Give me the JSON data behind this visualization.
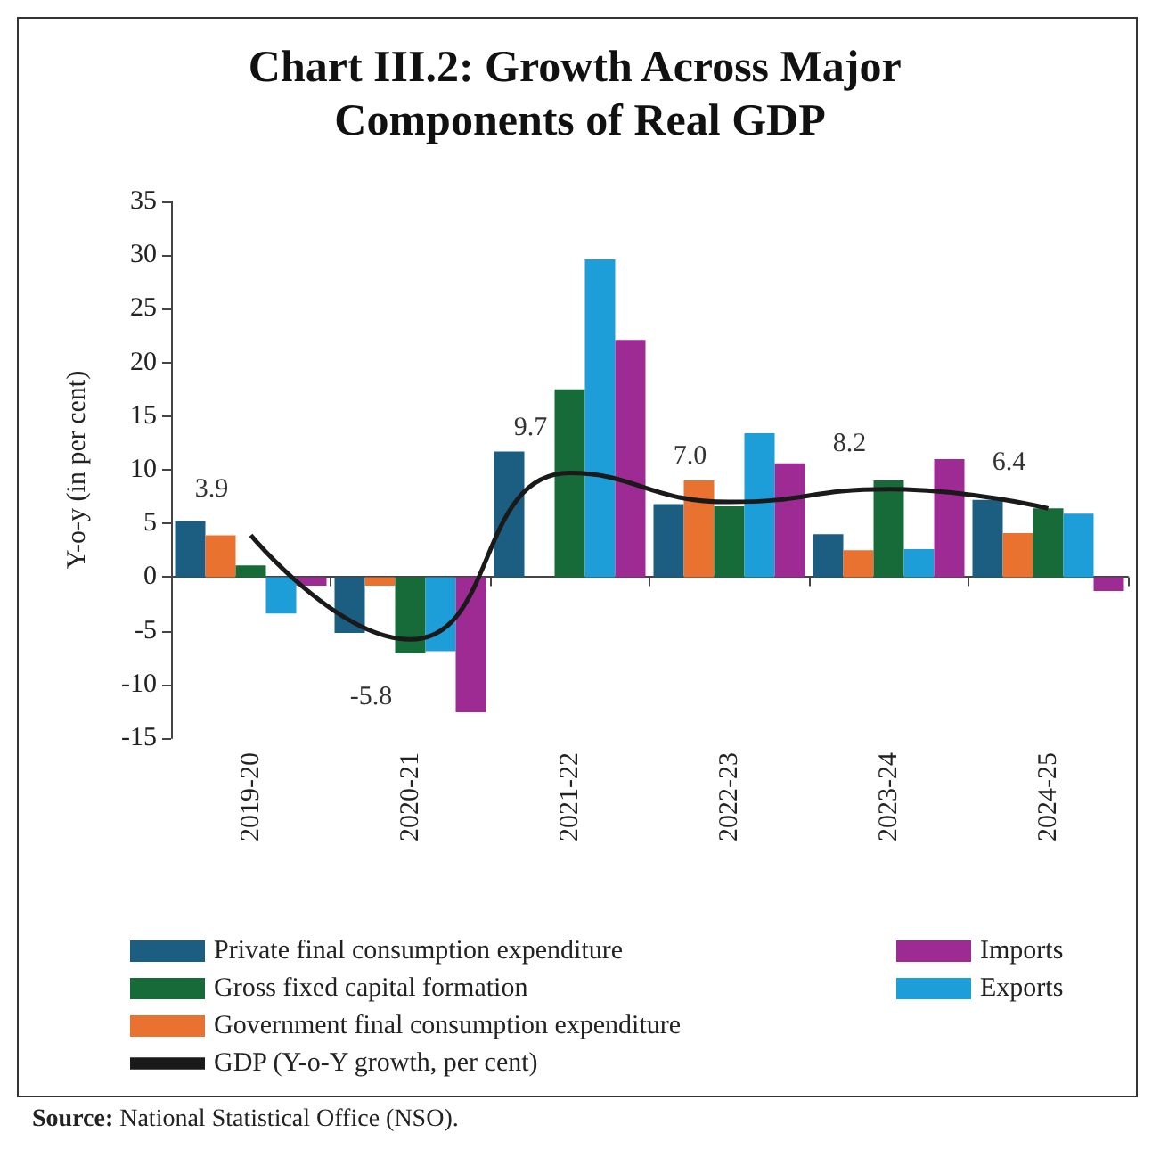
{
  "chart_data": {
    "type": "bar",
    "title": "Chart III.2: Growth Across Major Components of Real GDP",
    "ylabel": "Y-o-y (in per cent)",
    "categories": [
      "2019-20",
      "2020-21",
      "2021-22",
      "2022-23",
      "2023-24",
      "2024-25"
    ],
    "ylim": [
      -15,
      35
    ],
    "yticks": [
      -15,
      -10,
      -5,
      0,
      5,
      10,
      15,
      20,
      25,
      30,
      35
    ],
    "legend": "bottom",
    "series": [
      {
        "name": "Private final consumption expenditure",
        "color": "#1b5e82",
        "values": [
          5.2,
          -5.2,
          11.7,
          6.8,
          4.0,
          7.2
        ]
      },
      {
        "name": "Government final consumption expenditure",
        "color": "#ea7231",
        "values": [
          3.9,
          -0.8,
          0.0,
          9.0,
          2.5,
          4.1
        ]
      },
      {
        "name": "Gross fixed capital formation",
        "color": "#176b38",
        "values": [
          1.1,
          -7.1,
          17.5,
          6.6,
          9.0,
          6.4
        ]
      },
      {
        "name": "Exports",
        "color": "#1e9ed8",
        "values": [
          -3.4,
          -6.9,
          29.6,
          13.4,
          2.6,
          5.9
        ]
      },
      {
        "name": "Imports",
        "color": "#9e2a94",
        "values": [
          -0.8,
          -12.6,
          22.1,
          10.6,
          11.0,
          -1.3
        ]
      },
      {
        "name": "GDP (Y-o-Y growth, per cent)",
        "type": "line",
        "color": "#1a1a1a",
        "values": [
          3.9,
          -5.8,
          9.7,
          7.0,
          8.2,
          6.4
        ],
        "value_labels": [
          "3.9",
          "-5.8",
          "9.7",
          "7.0",
          "8.2",
          "6.4"
        ],
        "marker": "none"
      }
    ],
    "annotations": [
      "Source: National Statistical Office (NSO)."
    ]
  }
}
